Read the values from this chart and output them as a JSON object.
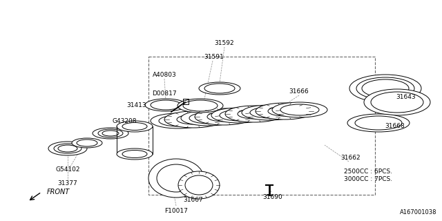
{
  "bg_color": "#ffffff",
  "line_color": "#000000",
  "text_color": "#000000",
  "font_size": 6.5,
  "catalog_number": "A167001038",
  "labels": [
    [
      325,
      62,
      "31592"
    ],
    [
      310,
      82,
      "31591"
    ],
    [
      238,
      108,
      "A40803"
    ],
    [
      238,
      135,
      "D00817"
    ],
    [
      198,
      152,
      "31413"
    ],
    [
      180,
      175,
      "G43208"
    ],
    [
      98,
      245,
      "G54102"
    ],
    [
      98,
      265,
      "31377"
    ],
    [
      433,
      132,
      "31666"
    ],
    [
      508,
      228,
      "31662"
    ],
    [
      588,
      140,
      "31643"
    ],
    [
      572,
      182,
      "31668"
    ],
    [
      280,
      290,
      "31667"
    ],
    [
      255,
      305,
      "F10017"
    ],
    [
      395,
      285,
      "31690"
    ]
  ],
  "label_2500": [
    498,
    248,
    "2500CC : 6PCS."
  ],
  "label_3000": [
    498,
    260,
    "3000CC : 7PCS."
  ],
  "front_label": [
    68,
    278,
    "FRONT"
  ]
}
